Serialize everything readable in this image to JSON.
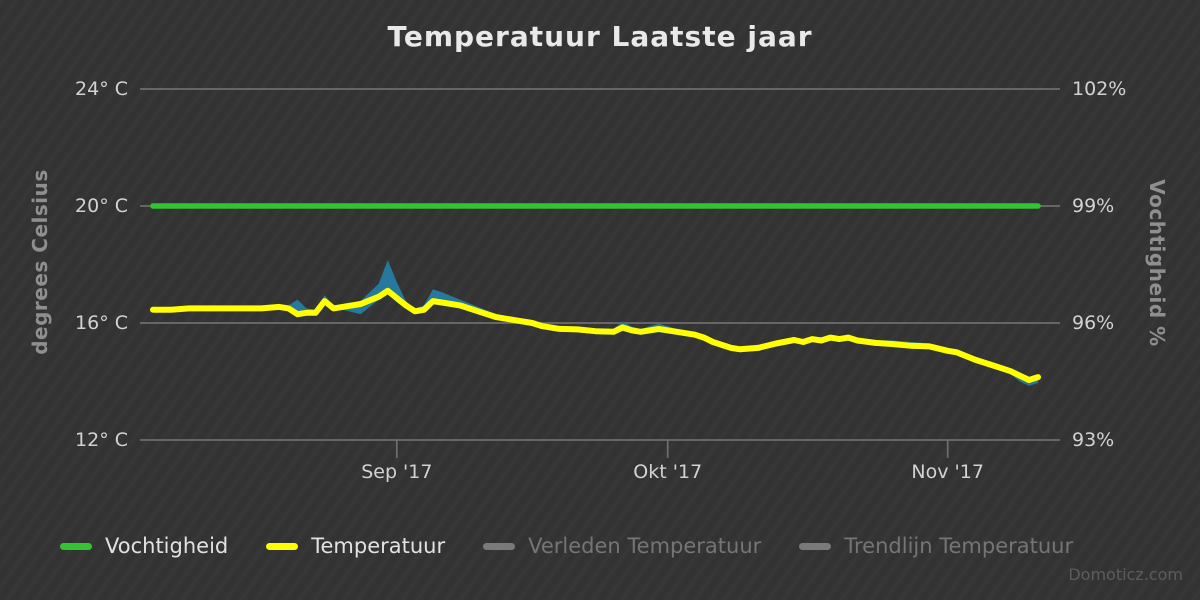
{
  "header": {
    "title": "Temperatuur Laatste jaar"
  },
  "footer": {
    "watermark": "Domoticz.com"
  },
  "colors": {
    "background": "#343434",
    "grid": "#6e6e6e",
    "tick_text": "#d2d2d2",
    "title_text": "#e9e9e9",
    "axis_title_text": "#8f8f8f",
    "legend_disabled_text": "#757575",
    "humidity_green": "#33c433",
    "temperature_yellow": "#ffff00",
    "range_band_teal": "#26799c",
    "watermark_text": "#5c5c5c"
  },
  "legend": {
    "items": [
      {
        "label": "Vochtigheid",
        "color": "#33c433",
        "enabled": true
      },
      {
        "label": "Temperatuur",
        "color": "#ffff00",
        "enabled": true
      },
      {
        "label": "Verleden Temperatuur",
        "color": "#7a7a7a",
        "enabled": false
      },
      {
        "label": "Trendlijn Temperatuur",
        "color": "#7a7a7a",
        "enabled": false
      }
    ]
  },
  "chart_data": {
    "type": "line",
    "title": "Temperatuur Laatste jaar",
    "grid": "horizontal-only",
    "legend_position": "bottom",
    "x_axis": {
      "unit": "days",
      "span_days": 98,
      "ticks": [
        {
          "day": 27,
          "label": "Sep '17"
        },
        {
          "day": 57,
          "label": "Okt '17"
        },
        {
          "day": 88,
          "label": "Nov '17"
        }
      ]
    },
    "y_left": {
      "title": "degrees Celsius",
      "min": 12,
      "max": 24,
      "tick_values": [
        24,
        20,
        16,
        12
      ],
      "ticks": [
        "24° C",
        "20° C",
        "16° C",
        "12° C"
      ]
    },
    "y_right": {
      "title": "Vochtigheid %",
      "min": 93,
      "max": 102,
      "tick_values": [
        102,
        99,
        96,
        93
      ],
      "ticks": [
        "102%",
        "99%",
        "96%",
        "93%"
      ]
    },
    "series": [
      {
        "name": "Vochtigheid",
        "type": "line",
        "axis": "right",
        "color": "#33c433",
        "points": [
          [
            0,
            99
          ],
          [
            98,
            99
          ]
        ]
      },
      {
        "name": "Temperatuur",
        "type": "line",
        "axis": "left",
        "color": "#ffff00",
        "points": [
          [
            0,
            16.45
          ],
          [
            2,
            16.45
          ],
          [
            4,
            16.5
          ],
          [
            6,
            16.5
          ],
          [
            8,
            16.5
          ],
          [
            10,
            16.5
          ],
          [
            12,
            16.5
          ],
          [
            14,
            16.55
          ],
          [
            15,
            16.5
          ],
          [
            16,
            16.3
          ],
          [
            17,
            16.35
          ],
          [
            18,
            16.35
          ],
          [
            19,
            16.75
          ],
          [
            20,
            16.5
          ],
          [
            21,
            16.55
          ],
          [
            23,
            16.65
          ],
          [
            25,
            16.9
          ],
          [
            26,
            17.1
          ],
          [
            27,
            16.85
          ],
          [
            28,
            16.6
          ],
          [
            29,
            16.4
          ],
          [
            30,
            16.45
          ],
          [
            31,
            16.75
          ],
          [
            32,
            16.7
          ],
          [
            34,
            16.6
          ],
          [
            36,
            16.4
          ],
          [
            38,
            16.2
          ],
          [
            40,
            16.1
          ],
          [
            42,
            16.0
          ],
          [
            43,
            15.9
          ],
          [
            45,
            15.8
          ],
          [
            47,
            15.78
          ],
          [
            49,
            15.72
          ],
          [
            51,
            15.7
          ],
          [
            52,
            15.85
          ],
          [
            53,
            15.75
          ],
          [
            54,
            15.7
          ],
          [
            56,
            15.8
          ],
          [
            58,
            15.7
          ],
          [
            60,
            15.6
          ],
          [
            61,
            15.5
          ],
          [
            62,
            15.35
          ],
          [
            64,
            15.15
          ],
          [
            65,
            15.1
          ],
          [
            67,
            15.15
          ],
          [
            69,
            15.3
          ],
          [
            71,
            15.42
          ],
          [
            72,
            15.35
          ],
          [
            73,
            15.45
          ],
          [
            74,
            15.4
          ],
          [
            75,
            15.5
          ],
          [
            76,
            15.45
          ],
          [
            77,
            15.5
          ],
          [
            78,
            15.4
          ],
          [
            80,
            15.32
          ],
          [
            82,
            15.28
          ],
          [
            84,
            15.22
          ],
          [
            86,
            15.2
          ],
          [
            88,
            15.05
          ],
          [
            89,
            15.0
          ],
          [
            91,
            14.75
          ],
          [
            93,
            14.55
          ],
          [
            94,
            14.45
          ],
          [
            95,
            14.35
          ],
          [
            96,
            14.2
          ],
          [
            97,
            14.05
          ],
          [
            98,
            14.15
          ]
        ]
      },
      {
        "name": "Temperatuur bereik (min-max)",
        "type": "arearange",
        "axis": "left",
        "color": "#26799c",
        "points": [
          [
            0,
            16.4,
            16.5
          ],
          [
            2,
            16.4,
            16.5
          ],
          [
            4,
            16.45,
            16.55
          ],
          [
            6,
            16.45,
            16.55
          ],
          [
            8,
            16.45,
            16.55
          ],
          [
            10,
            16.45,
            16.55
          ],
          [
            12,
            16.45,
            16.55
          ],
          [
            14,
            16.5,
            16.6
          ],
          [
            15,
            16.45,
            16.6
          ],
          [
            16,
            16.2,
            16.8
          ],
          [
            17,
            16.25,
            16.5
          ],
          [
            18,
            16.3,
            16.45
          ],
          [
            19,
            16.65,
            16.95
          ],
          [
            20,
            16.4,
            16.6
          ],
          [
            21,
            16.45,
            16.65
          ],
          [
            23,
            16.3,
            16.75
          ],
          [
            25,
            16.8,
            17.35
          ],
          [
            26,
            17.0,
            18.15
          ],
          [
            27,
            16.7,
            17.4
          ],
          [
            28,
            16.5,
            16.75
          ],
          [
            29,
            16.3,
            16.5
          ],
          [
            30,
            16.35,
            16.6
          ],
          [
            31,
            16.65,
            17.15
          ],
          [
            32,
            16.6,
            17.05
          ],
          [
            34,
            16.5,
            16.8
          ],
          [
            36,
            16.3,
            16.55
          ],
          [
            38,
            16.1,
            16.3
          ],
          [
            40,
            16.0,
            16.2
          ],
          [
            42,
            15.9,
            16.1
          ],
          [
            43,
            15.8,
            16.0
          ],
          [
            45,
            15.7,
            15.9
          ],
          [
            47,
            15.68,
            15.88
          ],
          [
            49,
            15.62,
            15.82
          ],
          [
            51,
            15.6,
            15.8
          ],
          [
            52,
            15.72,
            16.05
          ],
          [
            53,
            15.65,
            15.88
          ],
          [
            54,
            15.6,
            15.8
          ],
          [
            56,
            15.68,
            15.98
          ],
          [
            58,
            15.6,
            15.8
          ],
          [
            60,
            15.5,
            15.7
          ],
          [
            61,
            15.4,
            15.6
          ],
          [
            62,
            15.25,
            15.45
          ],
          [
            64,
            15.05,
            15.25
          ],
          [
            65,
            15.0,
            15.2
          ],
          [
            67,
            15.05,
            15.25
          ],
          [
            69,
            15.2,
            15.4
          ],
          [
            71,
            15.32,
            15.52
          ],
          [
            72,
            15.25,
            15.45
          ],
          [
            73,
            15.35,
            15.55
          ],
          [
            74,
            15.3,
            15.5
          ],
          [
            75,
            15.4,
            15.6
          ],
          [
            76,
            15.35,
            15.55
          ],
          [
            77,
            15.4,
            15.6
          ],
          [
            78,
            15.3,
            15.5
          ],
          [
            80,
            15.22,
            15.42
          ],
          [
            82,
            15.18,
            15.4
          ],
          [
            84,
            15.12,
            15.35
          ],
          [
            86,
            15.1,
            15.3
          ],
          [
            88,
            14.95,
            15.15
          ],
          [
            89,
            14.9,
            15.1
          ],
          [
            91,
            14.65,
            14.85
          ],
          [
            93,
            14.45,
            14.65
          ],
          [
            94,
            14.35,
            14.55
          ],
          [
            95,
            14.25,
            14.45
          ],
          [
            96,
            14.0,
            14.3
          ],
          [
            97,
            13.85,
            14.15
          ],
          [
            98,
            13.95,
            14.25
          ]
        ]
      },
      {
        "name": "Verleden Temperatuur",
        "type": "line",
        "axis": "left",
        "color": "#7a7a7a",
        "hidden": true,
        "points": []
      },
      {
        "name": "Trendlijn Temperatuur",
        "type": "line",
        "axis": "left",
        "color": "#7a7a7a",
        "hidden": true,
        "points": []
      }
    ]
  }
}
